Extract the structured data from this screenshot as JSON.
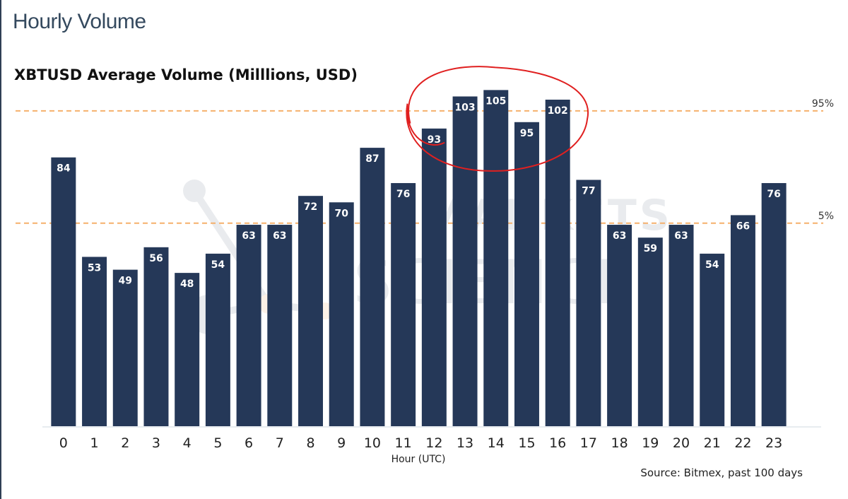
{
  "page": {
    "title": "Hourly Volume"
  },
  "source": "Source: Bitmex, past 100 days",
  "watermark": {
    "line1": "MARKETS",
    "line2": "SCIENCE"
  },
  "colors": {
    "bar": "#253858",
    "bar_label": "#ffffff",
    "reference_line": "#f5b06c",
    "annotation": "#e02020",
    "axis": "#e8ecf0"
  },
  "chart_data": {
    "type": "bar",
    "title": "XBTUSD Average Volume (Milllions, USD)",
    "xlabel": "Hour (UTC)",
    "ylabel": "",
    "categories": [
      "0",
      "1",
      "2",
      "3",
      "4",
      "5",
      "6",
      "7",
      "8",
      "9",
      "10",
      "11",
      "12",
      "13",
      "14",
      "15",
      "16",
      "17",
      "18",
      "19",
      "20",
      "21",
      "22",
      "23"
    ],
    "values": [
      84,
      53,
      49,
      56,
      48,
      54,
      63,
      63,
      72,
      70,
      87,
      76,
      93,
      103,
      105,
      95,
      102,
      77,
      63,
      59,
      63,
      54,
      66,
      76
    ],
    "ylim": [
      0,
      115
    ],
    "grid": false,
    "reference_lines": [
      {
        "label": "95%",
        "value": 98.5,
        "style": "dashed"
      },
      {
        "label": "5%",
        "value": 63.5,
        "style": "dashed"
      }
    ],
    "annotations": [
      {
        "type": "hand-drawn circle",
        "color": "red",
        "covers_categories": [
          "12",
          "13",
          "14",
          "15",
          "16"
        ]
      }
    ]
  }
}
